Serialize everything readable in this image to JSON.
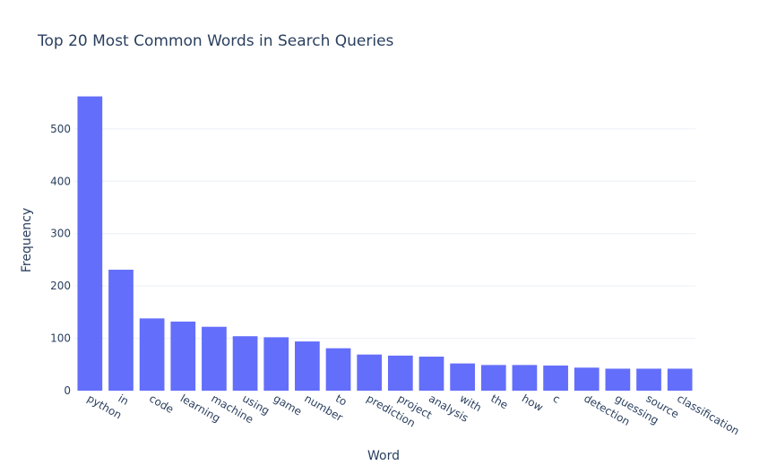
{
  "chart_data": {
    "type": "bar",
    "title": "Top 20 Most Common Words in Search Queries",
    "xlabel": "Word",
    "ylabel": "Frequency",
    "ylim": [
      0,
      575
    ],
    "yticks": [
      0,
      100,
      200,
      300,
      400,
      500
    ],
    "grid": true,
    "legend": "none",
    "bar_color": "#636efa",
    "categories": [
      "python",
      "in",
      "code",
      "learning",
      "machine",
      "using",
      "game",
      "number",
      "to",
      "prediction",
      "project",
      "analysis",
      "with",
      "the",
      "how",
      "c",
      "detection",
      "guessing",
      "source",
      "classification"
    ],
    "values": [
      562,
      231,
      138,
      132,
      122,
      104,
      102,
      94,
      81,
      69,
      67,
      65,
      52,
      49,
      49,
      48,
      44,
      42,
      42,
      42
    ]
  }
}
